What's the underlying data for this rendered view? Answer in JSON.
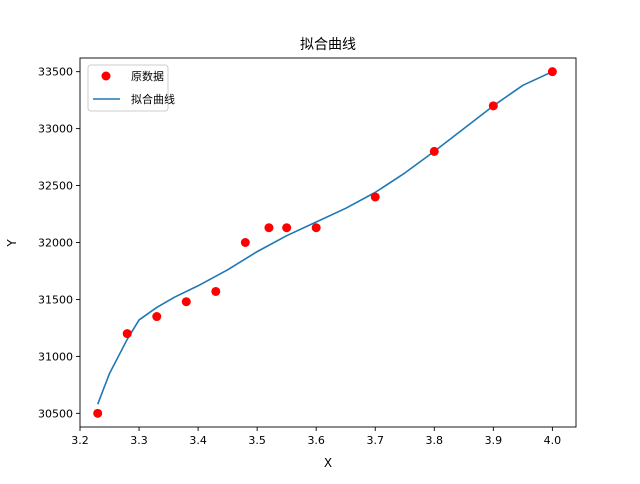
{
  "chart_data": {
    "type": "scatter",
    "title": "拟合曲线",
    "xlabel": "X",
    "ylabel": "Y",
    "xlim": [
      3.2,
      4.04
    ],
    "ylim": [
      30380,
      33620
    ],
    "xticks": [
      3.2,
      3.3,
      3.4,
      3.5,
      3.6,
      3.7,
      3.8,
      3.9,
      4.0
    ],
    "xtick_labels": [
      "3.2",
      "3.3",
      "3.4",
      "3.5",
      "3.6",
      "3.7",
      "3.8",
      "3.9",
      "4.0"
    ],
    "yticks": [
      30500,
      31000,
      31500,
      32000,
      32500,
      33000,
      33500
    ],
    "ytick_labels": [
      "30500",
      "31000",
      "31500",
      "32000",
      "32500",
      "33000",
      "33500"
    ],
    "legend_position": "top-left",
    "series": [
      {
        "name": "原数据",
        "kind": "scatter",
        "color": "#ff0000",
        "x": [
          3.23,
          3.28,
          3.33,
          3.38,
          3.43,
          3.48,
          3.52,
          3.55,
          3.6,
          3.7,
          3.8,
          3.9,
          4.0
        ],
        "y": [
          30500,
          31200,
          31350,
          31480,
          31570,
          32000,
          32130,
          32130,
          32130,
          32400,
          32800,
          33200,
          33500
        ]
      },
      {
        "name": "拟合曲线",
        "kind": "line",
        "color": "#1f77b4",
        "x": [
          3.23,
          3.25,
          3.28,
          3.3,
          3.33,
          3.36,
          3.4,
          3.45,
          3.5,
          3.55,
          3.6,
          3.65,
          3.7,
          3.75,
          3.8,
          3.85,
          3.9,
          3.95,
          4.0
        ],
        "y": [
          30580,
          30850,
          31150,
          31320,
          31430,
          31520,
          31620,
          31760,
          31920,
          32060,
          32180,
          32300,
          32440,
          32610,
          32800,
          33000,
          33200,
          33380,
          33500
        ]
      }
    ]
  }
}
